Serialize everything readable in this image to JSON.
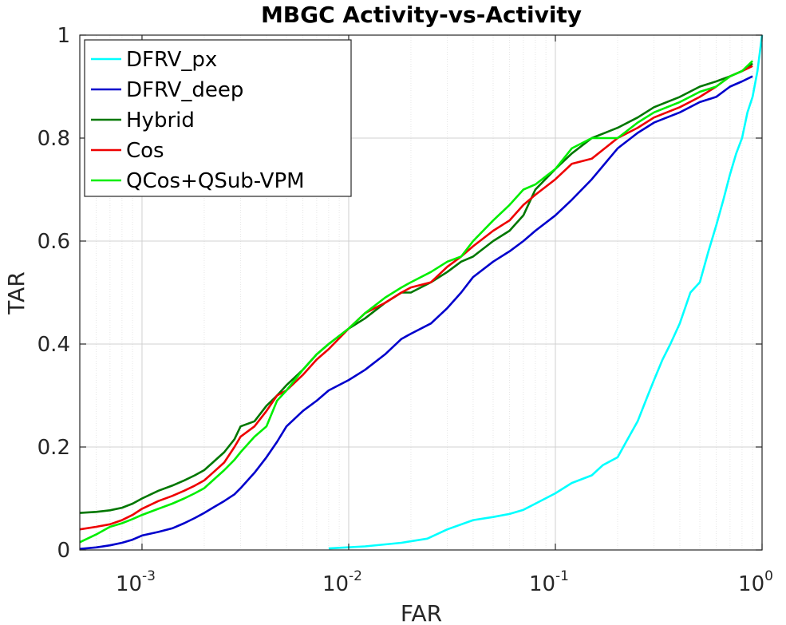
{
  "chart_data": {
    "type": "line",
    "title": "MBGC Activity-vs-Activity",
    "xlabel": "FAR",
    "ylabel": "TAR",
    "xscale": "log",
    "xlim": [
      0.0005,
      1
    ],
    "ylim": [
      0,
      1
    ],
    "grid": true,
    "legend_position": "top-left",
    "x_ticks": [
      {
        "value": 0.001,
        "base": "10",
        "exp": "-3"
      },
      {
        "value": 0.01,
        "base": "10",
        "exp": "-2"
      },
      {
        "value": 0.1,
        "base": "10",
        "exp": "-1"
      },
      {
        "value": 1,
        "base": "10",
        "exp": "0"
      }
    ],
    "y_ticks": [
      {
        "value": 0,
        "label": "0"
      },
      {
        "value": 0.2,
        "label": "0.2"
      },
      {
        "value": 0.4,
        "label": "0.4"
      },
      {
        "value": 0.6,
        "label": "0.6"
      },
      {
        "value": 0.8,
        "label": "0.8"
      },
      {
        "value": 1,
        "label": "1"
      }
    ],
    "series": [
      {
        "name": "DFRV_px",
        "color": "#00ffff",
        "x": [
          0.008,
          0.012,
          0.018,
          0.024,
          0.03,
          0.04,
          0.05,
          0.06,
          0.07,
          0.08,
          0.1,
          0.12,
          0.15,
          0.17,
          0.2,
          0.22,
          0.25,
          0.28,
          0.3,
          0.33,
          0.36,
          0.4,
          0.45,
          0.5,
          0.55,
          0.6,
          0.65,
          0.7,
          0.75,
          0.8,
          0.85,
          0.9,
          0.95,
          1.0
        ],
        "y": [
          0.003,
          0.007,
          0.014,
          0.022,
          0.04,
          0.058,
          0.064,
          0.07,
          0.078,
          0.09,
          0.11,
          0.13,
          0.145,
          0.165,
          0.18,
          0.21,
          0.25,
          0.3,
          0.33,
          0.37,
          0.4,
          0.44,
          0.5,
          0.52,
          0.58,
          0.63,
          0.68,
          0.73,
          0.77,
          0.8,
          0.85,
          0.88,
          0.93,
          1.0
        ]
      },
      {
        "name": "DFRV_deep",
        "color": "#0000cc",
        "x": [
          0.0005,
          0.0006,
          0.0007,
          0.0008,
          0.0009,
          0.001,
          0.0012,
          0.0014,
          0.0016,
          0.0018,
          0.002,
          0.0022,
          0.0025,
          0.0028,
          0.003,
          0.0035,
          0.004,
          0.0045,
          0.005,
          0.006,
          0.007,
          0.008,
          0.01,
          0.012,
          0.015,
          0.018,
          0.02,
          0.025,
          0.03,
          0.035,
          0.04,
          0.05,
          0.06,
          0.07,
          0.08,
          0.1,
          0.12,
          0.15,
          0.2,
          0.25,
          0.3,
          0.4,
          0.5,
          0.6,
          0.7,
          0.8,
          0.9
        ],
        "y": [
          0.002,
          0.005,
          0.009,
          0.014,
          0.02,
          0.028,
          0.035,
          0.042,
          0.052,
          0.062,
          0.072,
          0.082,
          0.095,
          0.108,
          0.12,
          0.15,
          0.18,
          0.21,
          0.24,
          0.27,
          0.29,
          0.31,
          0.33,
          0.35,
          0.38,
          0.41,
          0.42,
          0.44,
          0.47,
          0.5,
          0.53,
          0.56,
          0.58,
          0.6,
          0.62,
          0.65,
          0.68,
          0.72,
          0.78,
          0.81,
          0.83,
          0.85,
          0.87,
          0.88,
          0.9,
          0.91,
          0.92
        ]
      },
      {
        "name": "Hybrid",
        "color": "#007700",
        "x": [
          0.0005,
          0.0006,
          0.0007,
          0.0008,
          0.0009,
          0.001,
          0.0012,
          0.0014,
          0.0016,
          0.0018,
          0.002,
          0.0022,
          0.0025,
          0.0028,
          0.003,
          0.0035,
          0.004,
          0.0045,
          0.005,
          0.006,
          0.007,
          0.008,
          0.01,
          0.012,
          0.015,
          0.018,
          0.02,
          0.025,
          0.03,
          0.035,
          0.04,
          0.05,
          0.06,
          0.07,
          0.08,
          0.1,
          0.12,
          0.15,
          0.2,
          0.25,
          0.3,
          0.4,
          0.5,
          0.6,
          0.7,
          0.8,
          0.9
        ],
        "y": [
          0.072,
          0.074,
          0.077,
          0.082,
          0.09,
          0.1,
          0.115,
          0.125,
          0.135,
          0.145,
          0.155,
          0.17,
          0.19,
          0.215,
          0.24,
          0.25,
          0.28,
          0.3,
          0.32,
          0.35,
          0.38,
          0.4,
          0.43,
          0.45,
          0.48,
          0.5,
          0.5,
          0.52,
          0.54,
          0.56,
          0.57,
          0.6,
          0.62,
          0.65,
          0.7,
          0.74,
          0.77,
          0.8,
          0.82,
          0.84,
          0.86,
          0.88,
          0.9,
          0.91,
          0.92,
          0.93,
          0.945
        ]
      },
      {
        "name": "Cos",
        "color": "#ee0000",
        "x": [
          0.0005,
          0.0006,
          0.0007,
          0.0008,
          0.0009,
          0.001,
          0.0012,
          0.0014,
          0.0016,
          0.0018,
          0.002,
          0.0022,
          0.0025,
          0.0028,
          0.003,
          0.0035,
          0.004,
          0.0045,
          0.005,
          0.006,
          0.007,
          0.008,
          0.01,
          0.012,
          0.015,
          0.018,
          0.02,
          0.025,
          0.03,
          0.035,
          0.04,
          0.05,
          0.06,
          0.07,
          0.08,
          0.1,
          0.12,
          0.15,
          0.2,
          0.25,
          0.3,
          0.4,
          0.5,
          0.6,
          0.7,
          0.8,
          0.9
        ],
        "y": [
          0.04,
          0.045,
          0.05,
          0.058,
          0.068,
          0.08,
          0.095,
          0.105,
          0.115,
          0.125,
          0.135,
          0.15,
          0.17,
          0.2,
          0.22,
          0.24,
          0.27,
          0.3,
          0.31,
          0.34,
          0.37,
          0.39,
          0.43,
          0.46,
          0.48,
          0.5,
          0.51,
          0.52,
          0.55,
          0.57,
          0.59,
          0.62,
          0.64,
          0.67,
          0.69,
          0.72,
          0.75,
          0.76,
          0.8,
          0.82,
          0.84,
          0.86,
          0.88,
          0.9,
          0.92,
          0.93,
          0.94
        ]
      },
      {
        "name": "QCos+QSub-VPM",
        "color": "#00ee00",
        "x": [
          0.0005,
          0.0006,
          0.0007,
          0.0008,
          0.0009,
          0.001,
          0.0012,
          0.0014,
          0.0016,
          0.0018,
          0.002,
          0.0022,
          0.0025,
          0.0028,
          0.003,
          0.0035,
          0.004,
          0.0045,
          0.005,
          0.006,
          0.007,
          0.008,
          0.01,
          0.012,
          0.015,
          0.018,
          0.02,
          0.025,
          0.03,
          0.035,
          0.04,
          0.05,
          0.06,
          0.07,
          0.08,
          0.1,
          0.12,
          0.15,
          0.2,
          0.25,
          0.3,
          0.4,
          0.5,
          0.6,
          0.7,
          0.8,
          0.9
        ],
        "y": [
          0.015,
          0.03,
          0.045,
          0.052,
          0.06,
          0.068,
          0.08,
          0.09,
          0.1,
          0.11,
          0.12,
          0.135,
          0.155,
          0.175,
          0.19,
          0.22,
          0.24,
          0.29,
          0.31,
          0.35,
          0.38,
          0.4,
          0.43,
          0.46,
          0.49,
          0.51,
          0.52,
          0.54,
          0.56,
          0.57,
          0.6,
          0.64,
          0.67,
          0.7,
          0.71,
          0.74,
          0.78,
          0.8,
          0.8,
          0.83,
          0.85,
          0.87,
          0.89,
          0.9,
          0.92,
          0.93,
          0.95
        ]
      }
    ]
  }
}
